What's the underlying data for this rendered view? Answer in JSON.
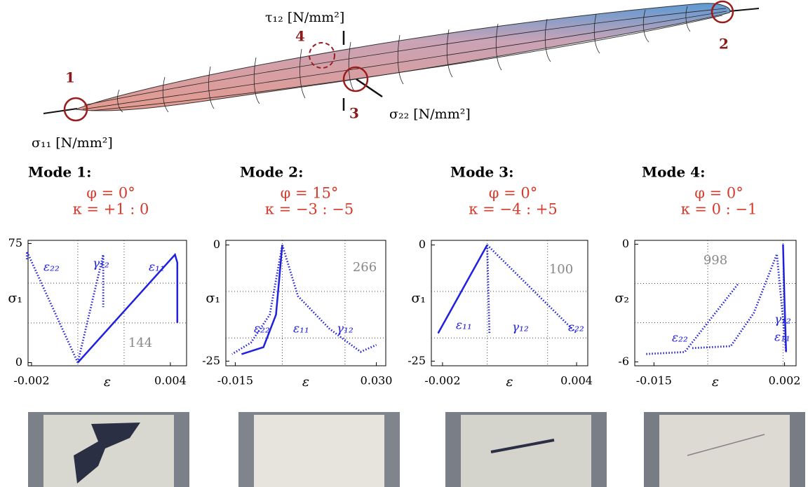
{
  "figure": {
    "point1": "1",
    "point2": "2",
    "point3": "3",
    "point4": "4",
    "tau12": "τ₁₂ [N/mm²]",
    "sigma22": "σ₂₂ [N/mm²]",
    "sigma11": "σ₁₁ [N/mm²]"
  },
  "chart_data": [
    {
      "type": "line",
      "title": "Mode 1:",
      "subtitle": [
        "φ = 0°",
        "κ = +1 : 0"
      ],
      "y_label": "σ₁",
      "x_label": "ε",
      "annotation": "144",
      "xlim": [
        -0.00215,
        0.0047
      ],
      "ylim": [
        -2,
        77
      ],
      "xticks": [
        -0.002,
        0.004
      ],
      "yticks": [
        0,
        75
      ],
      "xgrid": [
        0,
        0.002
      ],
      "ygrid": [
        25,
        50
      ],
      "series": [
        {
          "name": "ε₂₂",
          "color": "#2020e0",
          "style": "dotted",
          "x": [
            0,
            -0.0022,
            -0.0022
          ],
          "values": [
            0,
            70,
            64
          ]
        },
        {
          "name": "γ₁₂",
          "color": "#2020e0",
          "style": "dotted",
          "x": [
            0,
            0.0011,
            0.0011
          ],
          "values": [
            0,
            68,
            35
          ]
        },
        {
          "name": "ε₁₁",
          "color": "#2020e0",
          "style": "solid",
          "x": [
            0,
            0.0042,
            0.0043,
            0.0043
          ],
          "values": [
            0,
            68,
            63,
            25
          ]
        }
      ]
    },
    {
      "type": "line",
      "title": "Mode 2:",
      "subtitle": [
        "φ = 15°",
        "κ = −3 : −5"
      ],
      "y_label": "σ₁",
      "x_label": "ε",
      "annotation": "266",
      "xlim": [
        -0.018,
        0.033
      ],
      "ylim": [
        -26,
        1
      ],
      "xticks": [
        -0.015,
        {
          "value": 0.03,
          "label": "0.030"
        }
      ],
      "yticks": [
        0,
        -25
      ],
      "xgrid": [
        0,
        0.02
      ],
      "ygrid": [
        -10,
        -20
      ],
      "series": [
        {
          "name": "ε₂₂",
          "color": "#2020e0",
          "style": "dotted",
          "x": [
            0,
            -0.004,
            -0.01,
            -0.016
          ],
          "values": [
            0,
            -15,
            -21,
            -23.5
          ]
        },
        {
          "name": "ε₁₁",
          "color": "#2020e0",
          "style": "solid",
          "x": [
            0,
            -0.002,
            -0.006,
            -0.013
          ],
          "values": [
            0,
            -15,
            -22,
            -23.5
          ]
        },
        {
          "name": "γ₁₂",
          "color": "#2020e0",
          "style": "dotted",
          "x": [
            0,
            0.005,
            0.015,
            0.025,
            0.03
          ],
          "values": [
            0,
            -11,
            -18,
            -23,
            -21.5
          ]
        }
      ]
    },
    {
      "type": "line",
      "title": "Mode 3:",
      "subtitle": [
        "φ = 0°",
        "κ = −4 : +5"
      ],
      "y_label": "σ₁",
      "x_label": "ε",
      "annotation": "100",
      "xlim": [
        -0.0025,
        0.0045
      ],
      "ylim": [
        -26,
        1
      ],
      "xticks": [
        -0.002,
        0.004
      ],
      "yticks": [
        0,
        -25
      ],
      "xgrid": [
        0,
        0.0027
      ],
      "ygrid": [
        -10,
        -20
      ],
      "series": [
        {
          "name": "ε₁₁",
          "color": "#2020e0",
          "style": "solid",
          "x": [
            0,
            -0.0022
          ],
          "values": [
            0,
            -19
          ]
        },
        {
          "name": "γ₁₂",
          "color": "#2020e0",
          "style": "dotted",
          "x": [
            0,
            0.0001
          ],
          "values": [
            0,
            -19
          ]
        },
        {
          "name": "ε₂₂",
          "color": "#2020e0",
          "style": "dotted",
          "x": [
            0,
            0.004
          ],
          "values": [
            0,
            -19
          ]
        }
      ]
    },
    {
      "type": "line",
      "title": "Mode 4:",
      "subtitle": [
        "φ = 0°",
        "κ = 0 : −1"
      ],
      "y_label": "σ₂",
      "x_label": "ε",
      "annotation": "998",
      "xlim": [
        -0.0175,
        0.0035
      ],
      "ylim": [
        -6.2,
        0.2
      ],
      "xticks": [
        -0.015,
        0.002
      ],
      "yticks": [
        0,
        -6
      ],
      "xgrid": [
        -0.008,
        0.0018
      ],
      "ygrid": [
        -2,
        -4
      ],
      "series": [
        {
          "name": "ε₂₂",
          "color": "#2020e0",
          "style": "dotted",
          "x": [
            -0.016,
            -0.011,
            -0.008,
            -0.004
          ],
          "values": [
            -5.6,
            -5.5,
            -4,
            -2
          ]
        },
        {
          "name": "γ₁₂",
          "color": "#2020e0",
          "style": "dotted",
          "x": [
            -0.01,
            -0.005,
            -0.002,
            0.001,
            0.0022
          ],
          "values": [
            -5.3,
            -5.2,
            -3.5,
            -0.5,
            -5.5
          ]
        },
        {
          "name": "ε₁₁",
          "color": "#2020e0",
          "style": "solid",
          "x": [
            0.0018,
            0.002,
            0.0022
          ],
          "values": [
            0,
            -3,
            -5.5
          ]
        }
      ]
    }
  ]
}
